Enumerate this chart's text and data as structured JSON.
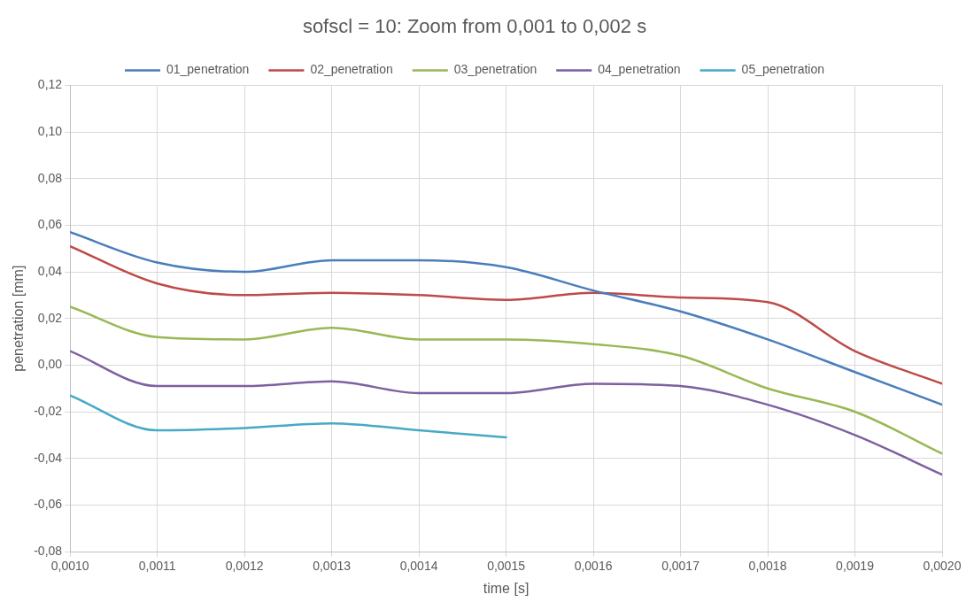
{
  "chart_data": {
    "type": "line",
    "title": "sofscl = 10: Zoom from 0,001 to 0,002 s",
    "xlabel": "time [s]",
    "ylabel": "penetration [mm]",
    "x": [
      0.001,
      0.0011,
      0.0012,
      0.0013,
      0.0014,
      0.0015,
      0.0016,
      0.0017,
      0.0018,
      0.0019,
      0.002
    ],
    "series": [
      {
        "name": "01_penetration",
        "color": "#4a7ebb",
        "values": [
          0.057,
          0.044,
          0.04,
          0.045,
          0.045,
          0.042,
          0.032,
          0.023,
          0.011,
          -0.003,
          -0.017
        ]
      },
      {
        "name": "02_penetration",
        "color": "#be4b48",
        "values": [
          0.051,
          0.035,
          0.03,
          0.031,
          0.03,
          0.028,
          0.031,
          0.029,
          0.027,
          0.006,
          -0.008
        ]
      },
      {
        "name": "03_penetration",
        "color": "#98b954",
        "values": [
          0.025,
          0.012,
          0.011,
          0.016,
          0.011,
          0.011,
          0.009,
          0.004,
          -0.01,
          -0.02,
          -0.038
        ]
      },
      {
        "name": "04_penetration",
        "color": "#7d60a0",
        "values": [
          0.006,
          -0.009,
          -0.009,
          -0.007,
          -0.012,
          -0.012,
          -0.008,
          -0.009,
          -0.017,
          -0.03,
          -0.047
        ]
      },
      {
        "name": "05_penetration",
        "color": "#46aac5",
        "values": [
          -0.013,
          -0.028,
          -0.027,
          -0.025,
          -0.028,
          -0.031,
          null,
          null,
          null,
          null,
          null
        ]
      }
    ],
    "xlim": [
      0.001,
      0.002
    ],
    "xticks": [
      {
        "value": 0.001,
        "label": "0,0010"
      },
      {
        "value": 0.0011,
        "label": "0,0011"
      },
      {
        "value": 0.0012,
        "label": "0,0012"
      },
      {
        "value": 0.0013,
        "label": "0,0013"
      },
      {
        "value": 0.0014,
        "label": "0,0014"
      },
      {
        "value": 0.0015,
        "label": "0,0015"
      },
      {
        "value": 0.0016,
        "label": "0,0016"
      },
      {
        "value": 0.0017,
        "label": "0,0017"
      },
      {
        "value": 0.0018,
        "label": "0,0018"
      },
      {
        "value": 0.0019,
        "label": "0,0019"
      },
      {
        "value": 0.002,
        "label": "0,0020"
      }
    ],
    "ylim": [
      -0.08,
      0.12
    ],
    "yticks": [
      {
        "value": -0.08,
        "label": "-0,08"
      },
      {
        "value": -0.06,
        "label": "-0,06"
      },
      {
        "value": -0.04,
        "label": "-0,04"
      },
      {
        "value": -0.02,
        "label": "-0,02"
      },
      {
        "value": 0,
        "label": "0,00"
      },
      {
        "value": 0.02,
        "label": "0,02"
      },
      {
        "value": 0.04,
        "label": "0,04"
      },
      {
        "value": 0.06,
        "label": "0,06"
      },
      {
        "value": 0.08,
        "label": "0,08"
      },
      {
        "value": 0.1,
        "label": "0,10"
      },
      {
        "value": 0.12,
        "label": "0,12"
      }
    ],
    "grid": true,
    "legend": "top",
    "marker": "none",
    "line_style": "solid"
  }
}
